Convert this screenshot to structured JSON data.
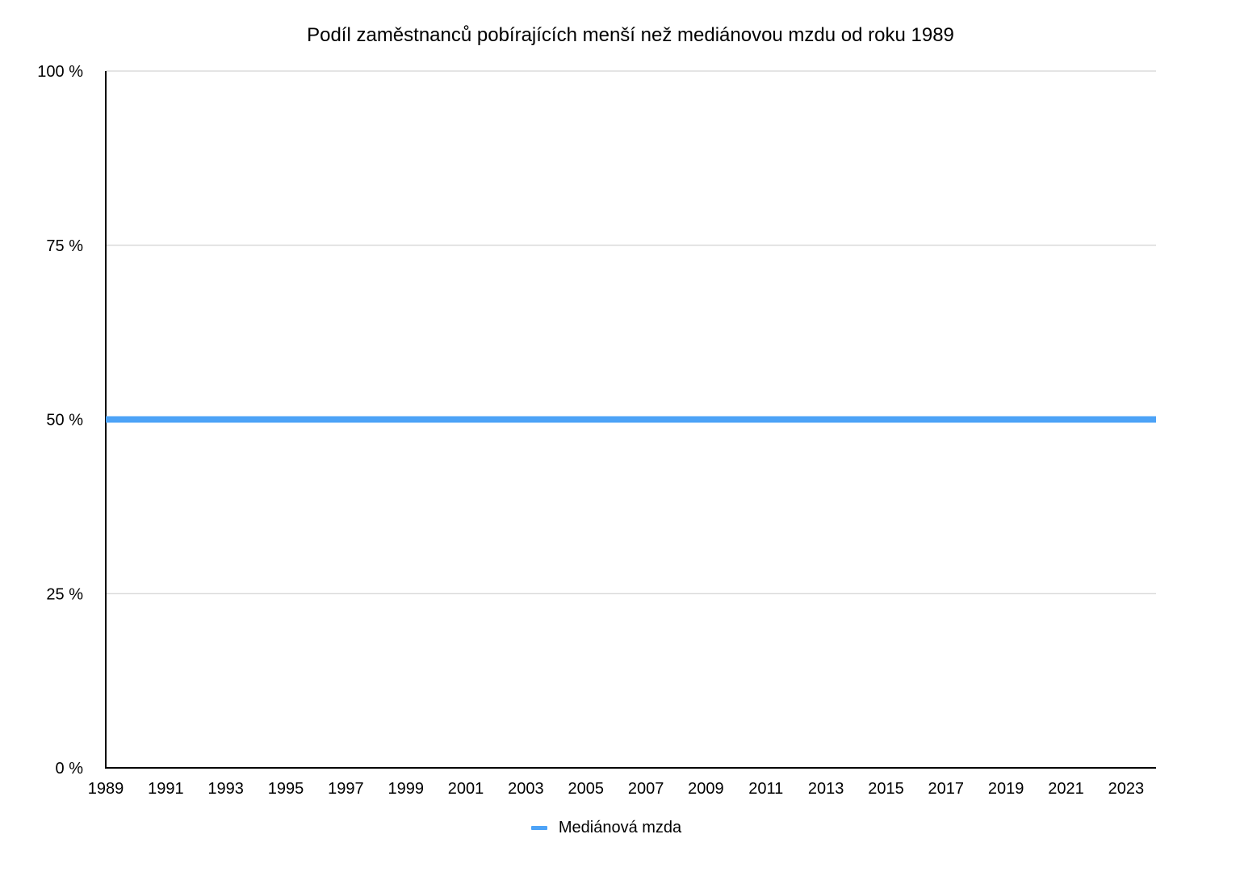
{
  "chart_data": {
    "type": "line",
    "title": "Podíl zaměstnanců pobírajících menší než mediánovou mzdu od roku 1989",
    "xlabel": "",
    "ylabel": "",
    "x_tick_labels": [
      "1989",
      "1991",
      "1993",
      "1995",
      "1997",
      "1999",
      "2001",
      "2003",
      "2005",
      "2007",
      "2009",
      "2011",
      "2013",
      "2015",
      "2017",
      "2019",
      "2021",
      "2023"
    ],
    "y_tick_labels": [
      "0 %",
      "25 %",
      "50 %",
      "75 %",
      "100 %"
    ],
    "y_tick_values": [
      0,
      25,
      50,
      75,
      100
    ],
    "xlim": [
      1989,
      2024
    ],
    "ylim": [
      0,
      100
    ],
    "grid": true,
    "legend_position": "bottom",
    "series": [
      {
        "name": "Mediánová mzda",
        "color": "#4da3f7",
        "x": [
          1989,
          2024
        ],
        "values": [
          50,
          50
        ]
      }
    ]
  }
}
